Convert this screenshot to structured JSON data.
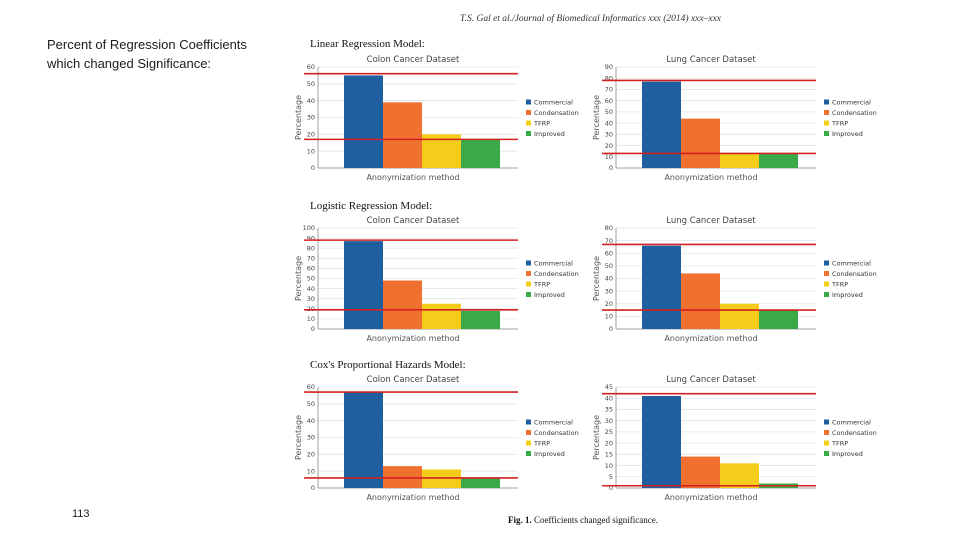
{
  "slide": {
    "title_line1": "Percent of Regression Coefficients",
    "title_line2": "which changed Significance:",
    "page_number": "113"
  },
  "figure": {
    "journal_header": "T.S. Gal et al./Journal of Biomedical Informatics xxx (2014) xxx–xxx",
    "caption_bold": "Fig. 1.",
    "caption_text": "Coefficients changed significance.",
    "model_labels": [
      "Linear Regression Model:",
      "Logistic Regression Model:",
      "Cox's Proportional Hazards Model:"
    ]
  },
  "colors": {
    "Commercial": "#1f5fa0",
    "Condensation": "#f07030",
    "TFRP": "#f5cc1a",
    "Improved": "#3aaa48",
    "reference_line": "#d42020"
  },
  "chart_data": [
    {
      "type": "bar",
      "model": "Linear Regression Model",
      "title": "Colon Cancer Dataset",
      "xlabel": "Anonymization method",
      "ylabel": "Percentage",
      "categories": [
        "Commercial",
        "Condensation",
        "TFRP",
        "Improved"
      ],
      "values": [
        55,
        39,
        20,
        17
      ],
      "ylim": [
        0,
        60
      ],
      "yticks": [
        "0",
        "10",
        "20",
        "30",
        "40",
        "50",
        "60"
      ],
      "reference_lines": [
        56,
        17
      ],
      "legend": "right",
      "grid": true
    },
    {
      "type": "bar",
      "model": "Linear Regression Model",
      "title": "Lung Cancer Dataset",
      "xlabel": "Anonymization method",
      "ylabel": "Percentage",
      "categories": [
        "Commercial",
        "Condensation",
        "TFRP",
        "Improved"
      ],
      "values": [
        77,
        44,
        13,
        13
      ],
      "ylim": [
        0,
        90
      ],
      "yticks": [
        "0",
        "10",
        "20",
        "30",
        "40",
        "50",
        "60",
        "70",
        "80",
        "90"
      ],
      "reference_lines": [
        78,
        13
      ],
      "legend": "right",
      "grid": true
    },
    {
      "type": "bar",
      "model": "Logistic Regression Model",
      "title": "Colon Cancer Dataset",
      "xlabel": "Anonymization method",
      "ylabel": "Percentage",
      "categories": [
        "Commercial",
        "Condensation",
        "TFRP",
        "Improved"
      ],
      "values": [
        87,
        48,
        25,
        18
      ],
      "ylim": [
        0,
        100
      ],
      "yticks": [
        "0",
        "10",
        "20",
        "30",
        "40",
        "50",
        "60",
        "70",
        "80",
        "90",
        "100"
      ],
      "reference_lines": [
        88,
        19
      ],
      "legend": "right",
      "grid": true
    },
    {
      "type": "bar",
      "model": "Logistic Regression Model",
      "title": "Lung Cancer Dataset",
      "xlabel": "Anonymization method",
      "ylabel": "Percentage",
      "categories": [
        "Commercial",
        "Condensation",
        "TFRP",
        "Improved"
      ],
      "values": [
        66,
        44,
        20,
        15
      ],
      "ylim": [
        0,
        80
      ],
      "yticks": [
        "0",
        "10",
        "20",
        "30",
        "40",
        "50",
        "60",
        "70",
        "80"
      ],
      "reference_lines": [
        67,
        15
      ],
      "legend": "right",
      "grid": true
    },
    {
      "type": "bar",
      "model": "Cox's Proportional Hazards Model",
      "title": "Colon Cancer Dataset",
      "xlabel": "Anonymization method",
      "ylabel": "Percentage",
      "categories": [
        "Commercial",
        "Condensation",
        "TFRP",
        "Improved"
      ],
      "values": [
        57,
        13,
        11,
        6
      ],
      "ylim": [
        0,
        60
      ],
      "yticks": [
        "0",
        "10",
        "20",
        "30",
        "40",
        "50",
        "60"
      ],
      "reference_lines": [
        57,
        6
      ],
      "legend": "right",
      "grid": true
    },
    {
      "type": "bar",
      "model": "Cox's Proportional Hazards Model",
      "title": "Lung Cancer Dataset",
      "xlabel": "Anonymization method",
      "ylabel": "Percentage",
      "categories": [
        "Commercial",
        "Condensation",
        "TFRP",
        "Improved"
      ],
      "values": [
        41,
        14,
        11,
        2
      ],
      "ylim": [
        0,
        45
      ],
      "yticks": [
        "0",
        "5",
        "10",
        "15",
        "20",
        "25",
        "30",
        "35",
        "40",
        "45"
      ],
      "reference_lines": [
        42,
        1
      ],
      "legend": "right",
      "grid": true
    }
  ]
}
